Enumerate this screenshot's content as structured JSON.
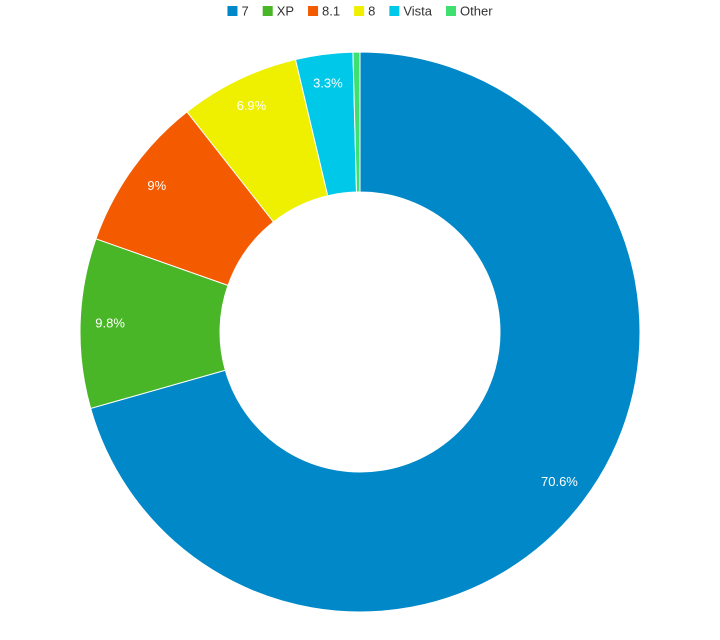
{
  "chart_data": {
    "type": "donut",
    "categories": [
      "7",
      "XP",
      "8.1",
      "8",
      "Vista",
      "Other"
    ],
    "values": [
      70.6,
      9.8,
      9,
      6.9,
      3.3,
      0.4
    ],
    "value_labels": [
      "70.6%",
      "9.8%",
      "9%",
      "6.9%",
      "3.3%",
      null
    ],
    "colors": [
      "#0088c8",
      "#48b626",
      "#f45a00",
      "#eef000",
      "#00c8e8",
      "#3ee070"
    ],
    "legend": "top"
  }
}
